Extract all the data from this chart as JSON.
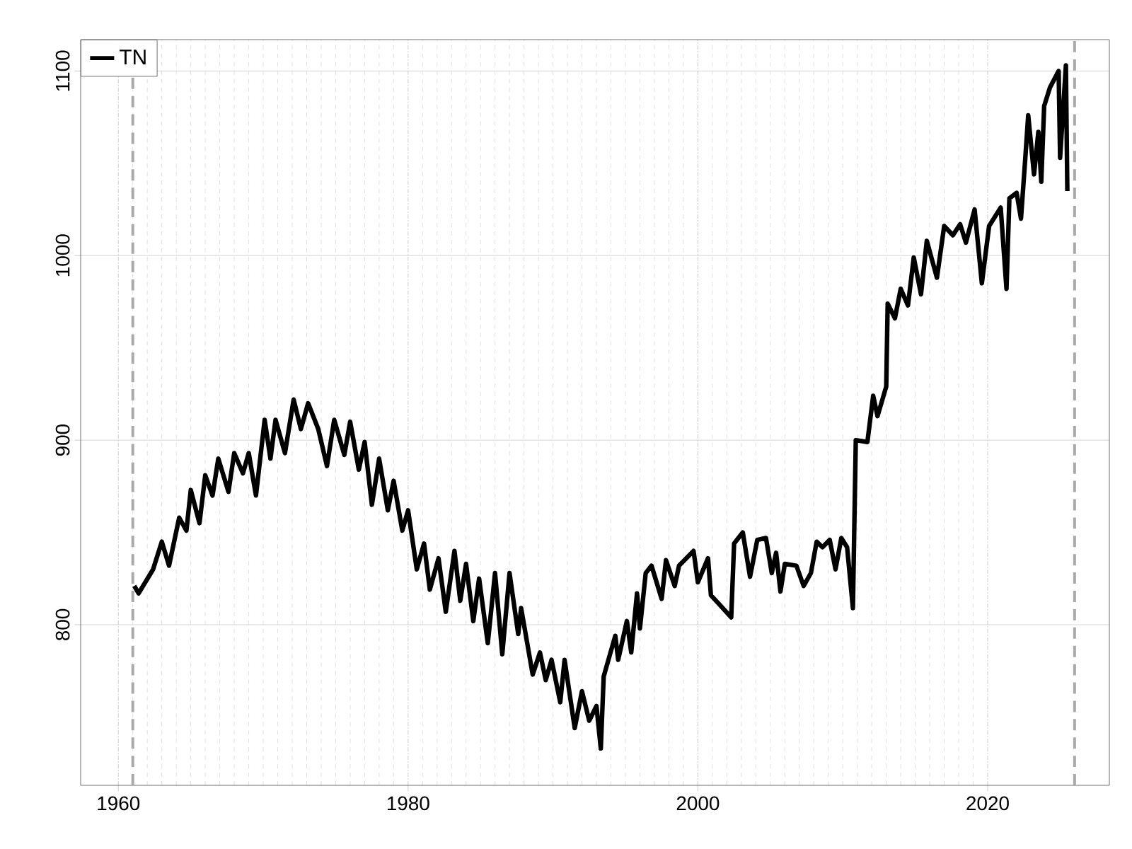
{
  "chart_data": {
    "type": "line",
    "xlim": [
      1957.4,
      2028.4
    ],
    "ylim": [
      713,
      1117
    ],
    "xticks": [
      1960,
      1980,
      2000,
      2020
    ],
    "yticks": [
      800,
      900,
      1000,
      1100
    ],
    "grid": true,
    "legend": "top left",
    "line_style": "solid",
    "marker": "none",
    "ref_lines": [
      {
        "axis": "x",
        "value": 1961.0,
        "color": "#aaaaaa",
        "line_style": "dashed"
      },
      {
        "axis": "x",
        "value": 2026.0,
        "color": "#aaaaaa",
        "line_style": "dashed"
      }
    ],
    "series": [
      {
        "name": "TN",
        "color": "#000000",
        "x": [
          1961.1,
          1961.4,
          1962.4,
          1963.0,
          1963.5,
          1964.2,
          1964.7,
          1965.0,
          1965.6,
          1966.0,
          1966.5,
          1966.9,
          1967.6,
          1968.0,
          1968.6,
          1969.0,
          1969.5,
          1970.1,
          1970.5,
          1970.85,
          1971.5,
          1972.1,
          1972.6,
          1973.1,
          1973.8,
          1974.4,
          1974.9,
          1975.6,
          1976.0,
          1976.6,
          1977.0,
          1977.5,
          1978.0,
          1978.6,
          1979.0,
          1979.6,
          1980.0,
          1980.6,
          1981.1,
          1981.5,
          1982.1,
          1982.6,
          1983.2,
          1983.6,
          1984.0,
          1984.5,
          1984.9,
          1985.5,
          1986.0,
          1986.5,
          1987.0,
          1987.6,
          1987.8,
          1988.6,
          1989.1,
          1989.5,
          1989.9,
          1990.5,
          1990.8,
          1991.5,
          1992.0,
          1992.5,
          1993.0,
          1993.3,
          1993.5,
          1994.3,
          1994.5,
          1995.1,
          1995.4,
          1995.8,
          1996.0,
          1996.4,
          1996.8,
          1997.5,
          1997.8,
          1998.4,
          1998.7,
          1999.7,
          2000.0,
          2000.7,
          2000.9,
          2001.6,
          2002.3,
          2002.5,
          2003.1,
          2003.6,
          2004.1,
          2004.7,
          2005.1,
          2005.4,
          2005.7,
          2006.0,
          2006.8,
          2007.3,
          2007.8,
          2008.2,
          2008.6,
          2009.1,
          2009.5,
          2009.9,
          2010.3,
          2010.7,
          2010.9,
          2011.7,
          2012.1,
          2012.4,
          2013.0,
          2013.1,
          2013.6,
          2014.0,
          2014.5,
          2014.9,
          2015.4,
          2015.8,
          2016.5,
          2017.0,
          2017.6,
          2018.1,
          2018.5,
          2019.1,
          2019.6,
          2020.1,
          2020.9,
          2021.3,
          2021.5,
          2022.0,
          2022.3,
          2022.6,
          2022.8,
          2023.2,
          2023.5,
          2023.7,
          2023.9,
          2024.3,
          2024.9,
          2025.0,
          2025.4,
          2025.5
        ],
        "values": [
          821,
          817,
          830,
          845,
          832,
          858,
          851,
          873,
          855,
          881,
          870,
          890,
          872,
          893,
          882,
          893,
          870,
          911,
          890,
          911,
          893,
          922,
          906,
          920,
          906,
          886,
          911,
          892,
          910,
          884,
          899,
          865,
          890,
          862,
          878,
          851,
          862,
          830,
          844,
          819,
          836,
          807,
          840,
          813,
          833,
          802,
          825,
          790,
          828,
          784,
          828,
          795,
          809,
          773,
          785,
          770,
          781,
          758,
          781,
          744,
          764,
          748,
          756,
          733,
          772,
          794,
          781,
          802,
          785,
          817,
          798,
          828,
          832,
          814,
          835,
          821,
          832,
          840,
          823,
          836,
          816,
          810,
          804,
          844,
          850,
          826,
          846,
          847,
          828,
          839,
          818,
          833,
          832,
          821,
          828,
          845,
          842,
          846,
          830,
          847,
          842,
          809,
          900,
          899,
          924,
          913,
          929,
          974,
          966,
          982,
          973,
          999,
          979,
          1008,
          988,
          1016,
          1011,
          1017,
          1007,
          1025,
          985,
          1016,
          1026,
          982,
          1031,
          1034,
          1020,
          1053,
          1076,
          1044,
          1067,
          1040,
          1081,
          1091,
          1100,
          1053,
          1103,
          1035
        ]
      }
    ]
  }
}
